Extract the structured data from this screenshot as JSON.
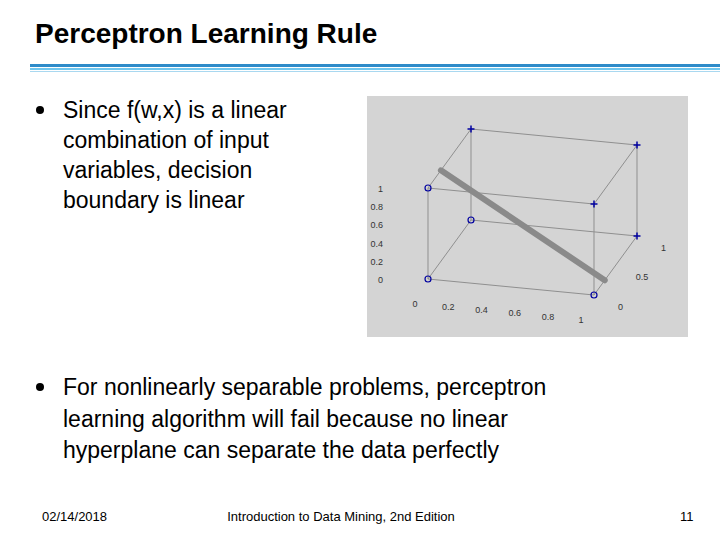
{
  "title": "Perceptron Learning Rule",
  "bullets": [
    [
      "Since f(w,x) is a linear",
      "combination of input",
      "variables, decision",
      "boundary is linear"
    ],
    [
      "For nonlinearly separable problems, perceptron",
      "learning algorithm will fail because no linear",
      "hyperplane can separate the data perfectly"
    ]
  ],
  "footer": {
    "date": "02/14/2018",
    "source": "Introduction to Data Mining, 2nd Edition",
    "page": "11"
  },
  "chart_data": {
    "type": "scatter3d",
    "xlim": [
      0,
      1
    ],
    "xticks": [
      0,
      0.2,
      0.4,
      0.6,
      0.8,
      1
    ],
    "ylim": [
      0,
      1
    ],
    "yticks": [
      0,
      0.5,
      1
    ],
    "zlim": [
      0,
      1
    ],
    "zticks": [
      0,
      0.2,
      0.4,
      0.6,
      0.8,
      1
    ],
    "series": [
      {
        "marker": "plus",
        "color": "#0000a0",
        "x": [
          0,
          1,
          1,
          1
        ],
        "y": [
          1,
          0,
          1,
          1
        ],
        "z": [
          1,
          1,
          0,
          1
        ]
      },
      {
        "marker": "circle",
        "color": "#0000a0",
        "x": [
          0,
          0,
          0,
          1
        ],
        "y": [
          0,
          1,
          0,
          0
        ],
        "z": [
          1,
          0,
          0,
          0
        ]
      }
    ],
    "boundary": {
      "from": [
        0,
        0.3,
        1
      ],
      "to": [
        1,
        0.25,
        0
      ],
      "color": "#8a8a8a"
    }
  }
}
